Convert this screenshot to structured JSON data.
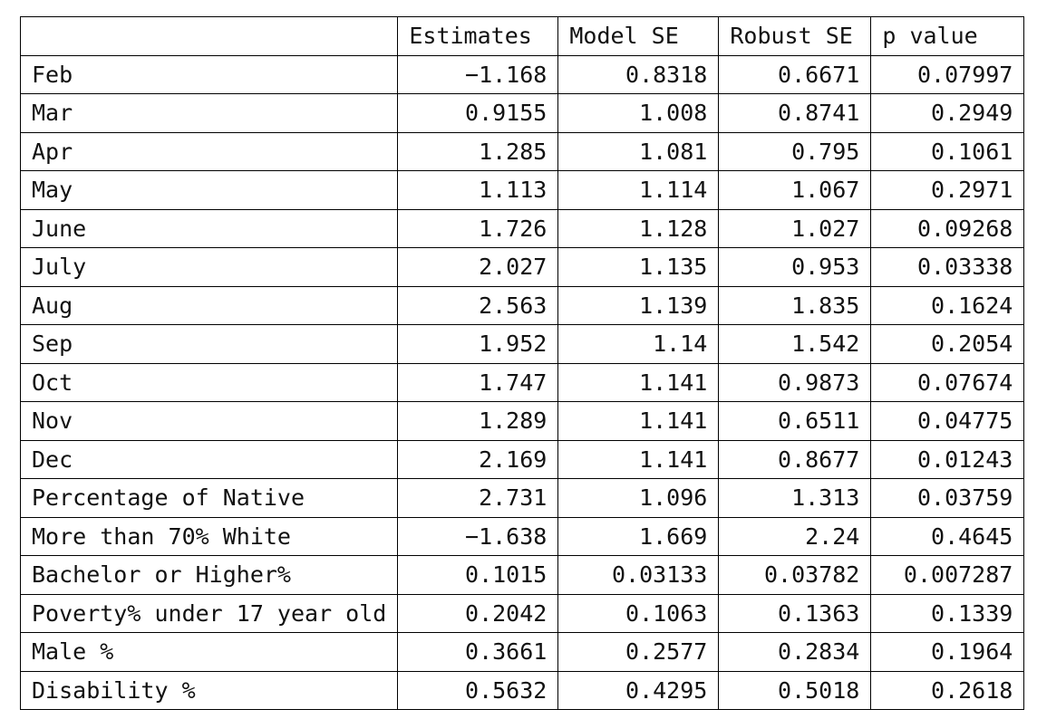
{
  "table": {
    "headers": [
      "",
      "Estimates",
      "Model SE",
      "Robust SE",
      "p value"
    ],
    "rows": [
      [
        "Feb",
        "−1.168",
        "0.8318",
        "0.6671",
        "0.07997"
      ],
      [
        "Mar",
        "0.9155",
        "1.008",
        "0.8741",
        "0.2949"
      ],
      [
        "Apr",
        "1.285",
        "1.081",
        "0.795",
        "0.1061"
      ],
      [
        "May",
        "1.113",
        "1.114",
        "1.067",
        "0.2971"
      ],
      [
        "June",
        "1.726",
        "1.128",
        "1.027",
        "0.09268"
      ],
      [
        "July",
        "2.027",
        "1.135",
        "0.953",
        "0.03338"
      ],
      [
        "Aug",
        "2.563",
        "1.139",
        "1.835",
        "0.1624"
      ],
      [
        "Sep",
        "1.952",
        "1.14",
        "1.542",
        "0.2054"
      ],
      [
        "Oct",
        "1.747",
        "1.141",
        "0.9873",
        "0.07674"
      ],
      [
        "Nov",
        "1.289",
        "1.141",
        "0.6511",
        "0.04775"
      ],
      [
        "Dec",
        "2.169",
        "1.141",
        "0.8677",
        "0.01243"
      ],
      [
        "Percentage of Native",
        "2.731",
        "1.096",
        "1.313",
        "0.03759"
      ],
      [
        "More than 70% White",
        "−1.638",
        "1.669",
        "2.24",
        "0.4645"
      ],
      [
        "Bachelor or Higher%",
        "0.1015",
        "0.03133",
        "0.03782",
        "0.007287"
      ],
      [
        "Poverty% under 17 year old",
        "0.2042",
        "0.1063",
        "0.1363",
        "0.1339"
      ],
      [
        "Male %",
        "0.3661",
        "0.2577",
        "0.2834",
        "0.1964"
      ],
      [
        "Disability %",
        "0.5632",
        "0.4295",
        "0.5018",
        "0.2618"
      ]
    ]
  }
}
